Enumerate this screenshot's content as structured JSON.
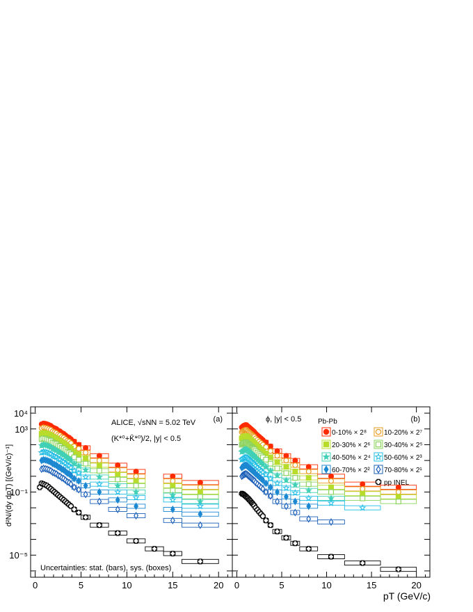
{
  "chart_data": {
    "type": "scatter",
    "y_title": "d²N/(dy dpT) [(GeV/c)⁻¹]",
    "x_title": "pT (GeV/c)",
    "x_ticks": [
      "0",
      "5",
      "10",
      "15",
      "20"
    ],
    "y_ticks": [
      "10⁴",
      "10³",
      "10⁻¹",
      "10⁻⁵"
    ],
    "xlim": [
      -0.5,
      21.5
    ],
    "y_log10_range": [
      -6.4,
      4.4
    ],
    "legend_placement": "top-right of panel (b)",
    "panels": [
      {
        "label": "(a)",
        "annotations": [
          "ALICE, √sNN = 5.02 TeV",
          "(K*⁰+K̄*⁰)/2, |y| < 0.5",
          "Uncertainties: stat. (bars), sys. (boxes)"
        ],
        "bins": [
          [
            0.4,
            0.6
          ],
          [
            0.6,
            0.8
          ],
          [
            0.8,
            1.0
          ],
          [
            1.0,
            1.2
          ],
          [
            1.2,
            1.4
          ],
          [
            1.4,
            1.6
          ],
          [
            1.6,
            1.8
          ],
          [
            1.8,
            2.0
          ],
          [
            2.0,
            2.2
          ],
          [
            2.2,
            2.4
          ],
          [
            2.4,
            2.6
          ],
          [
            2.6,
            2.8
          ],
          [
            2.8,
            3.0
          ],
          [
            3.0,
            3.2
          ],
          [
            3.2,
            3.4
          ],
          [
            3.4,
            3.6
          ],
          [
            3.6,
            3.8
          ],
          [
            3.8,
            4.0
          ],
          [
            4.0,
            4.5
          ],
          [
            4.5,
            5.0
          ],
          [
            5.0,
            6.0
          ],
          [
            6.0,
            8.0
          ],
          [
            8.0,
            10.0
          ],
          [
            10.0,
            12.0
          ],
          [
            12.0,
            14.0
          ],
          [
            14.0,
            16.0
          ],
          [
            16.0,
            20.0
          ]
        ],
        "series": [
          {
            "name": "0-10% × 2⁸",
            "log10_y": [
              null,
              3.3,
              3.35,
              3.33,
              3.3,
              3.25,
              3.2,
              3.1,
              3.05,
              3.0,
              2.9,
              2.85,
              2.75,
              2.7,
              2.6,
              2.5,
              2.45,
              2.35,
              2.2,
              2.0,
              1.8,
              1.3,
              0.7,
              0.3,
              null,
              0.0,
              -0.4
            ]
          },
          {
            "name": "10-20% × 2⁷",
            "log10_y": [
              null,
              3.05,
              3.1,
              3.08,
              3.05,
              3.0,
              2.95,
              2.85,
              2.8,
              2.75,
              2.65,
              2.6,
              2.5,
              2.45,
              2.35,
              2.25,
              2.2,
              2.1,
              1.9,
              1.75,
              1.5,
              1.0,
              0.4,
              0.0,
              null,
              -0.3,
              -0.7
            ]
          },
          {
            "name": "20-30% × 2⁶",
            "log10_y": [
              null,
              2.7,
              2.75,
              2.73,
              2.7,
              2.65,
              2.6,
              2.5,
              2.45,
              2.4,
              2.3,
              2.25,
              2.15,
              2.1,
              2.0,
              1.9,
              1.85,
              1.75,
              1.55,
              1.4,
              1.15,
              0.7,
              0.1,
              -0.3,
              null,
              -0.6,
              -1.0
            ]
          },
          {
            "name": "30-40% × 2⁵",
            "log10_y": [
              null,
              2.35,
              2.4,
              2.38,
              2.35,
              2.3,
              2.25,
              2.15,
              2.1,
              2.05,
              1.95,
              1.9,
              1.8,
              1.75,
              1.65,
              1.55,
              1.5,
              1.4,
              1.2,
              1.05,
              0.8,
              0.35,
              -0.2,
              -0.6,
              null,
              -0.9,
              -1.3
            ]
          },
          {
            "name": "40-50% × 2⁴",
            "log10_y": [
              null,
              1.95,
              2.0,
              1.98,
              1.95,
              1.9,
              1.85,
              1.75,
              1.7,
              1.65,
              1.55,
              1.5,
              1.4,
              1.35,
              1.25,
              1.15,
              1.1,
              1.0,
              0.8,
              0.65,
              0.4,
              -0.05,
              -0.6,
              -1.0,
              null,
              -1.2,
              -1.6
            ]
          },
          {
            "name": "50-60% × 2³",
            "log10_y": [
              null,
              1.5,
              1.55,
              1.53,
              1.5,
              1.45,
              1.4,
              1.3,
              1.25,
              1.2,
              1.1,
              1.05,
              0.95,
              0.9,
              0.8,
              0.7,
              0.65,
              0.55,
              0.35,
              0.2,
              -0.05,
              -0.5,
              -1.0,
              -1.35,
              null,
              -1.5,
              -1.9
            ]
          },
          {
            "name": "60-70% × 2²",
            "log10_y": [
              null,
              1.0,
              1.05,
              1.03,
              1.0,
              0.95,
              0.9,
              0.8,
              0.75,
              0.7,
              0.6,
              0.55,
              0.45,
              0.4,
              0.3,
              0.2,
              0.15,
              0.05,
              -0.15,
              -0.3,
              -0.6,
              -1.0,
              -1.5,
              -1.9,
              null,
              -2.1,
              -2.4
            ]
          },
          {
            "name": "70-80% × 2¹",
            "log10_y": [
              null,
              0.45,
              0.5,
              0.48,
              0.45,
              0.4,
              0.35,
              0.25,
              0.2,
              0.15,
              0.05,
              0.0,
              -0.1,
              -0.15,
              -0.25,
              -0.35,
              -0.4,
              -0.5,
              -0.7,
              -0.85,
              -1.15,
              -1.6,
              -2.1,
              -2.5,
              null,
              -2.8,
              -3.1
            ]
          },
          {
            "name": "pp INEL",
            "log10_y": [
              -0.7,
              -0.45,
              -0.5,
              -0.55,
              -0.6,
              -0.7,
              -0.8,
              -0.9,
              -1.0,
              -1.1,
              -1.2,
              -1.3,
              -1.4,
              -1.5,
              -1.6,
              -1.7,
              -1.8,
              -1.9,
              -2.1,
              -2.3,
              -2.6,
              -3.1,
              -3.6,
              -4.1,
              -4.6,
              -4.9,
              -5.4
            ]
          }
        ]
      },
      {
        "label": "(b)",
        "annotations": [
          "ϕ, |y| < 0.5",
          "Pb-Pb"
        ],
        "bins": [
          [
            0.5,
            0.6
          ],
          [
            0.6,
            0.7
          ],
          [
            0.7,
            0.8
          ],
          [
            0.8,
            0.9
          ],
          [
            0.9,
            1.0
          ],
          [
            1.0,
            1.1
          ],
          [
            1.1,
            1.2
          ],
          [
            1.2,
            1.3
          ],
          [
            1.3,
            1.4
          ],
          [
            1.4,
            1.5
          ],
          [
            1.5,
            1.6
          ],
          [
            1.6,
            1.7
          ],
          [
            1.7,
            1.8
          ],
          [
            1.8,
            1.9
          ],
          [
            1.9,
            2.0
          ],
          [
            2.0,
            2.2
          ],
          [
            2.2,
            2.4
          ],
          [
            2.4,
            2.6
          ],
          [
            2.6,
            2.8
          ],
          [
            2.8,
            3.0
          ],
          [
            3.0,
            3.5
          ],
          [
            3.5,
            4.0
          ],
          [
            4.0,
            5.0
          ],
          [
            5.0,
            6.0
          ],
          [
            6.0,
            7.0
          ],
          [
            7.0,
            9.0
          ],
          [
            9.0,
            12.0
          ],
          [
            12.0,
            16.0
          ],
          [
            16.0,
            20.0
          ]
        ],
        "series": [
          {
            "name": "0-10% × 2⁸",
            "log10_y": [
              3.1,
              3.15,
              3.2,
              3.22,
              3.25,
              3.25,
              3.2,
              3.15,
              3.1,
              3.05,
              3.0,
              2.95,
              2.9,
              2.85,
              2.8,
              2.7,
              2.6,
              2.5,
              2.4,
              2.3,
              2.15,
              1.9,
              1.6,
              1.3,
              1.0,
              0.6,
              0.0,
              -0.5,
              -0.7
            ]
          },
          {
            "name": "10-20% × 2⁷",
            "log10_y": [
              2.8,
              2.85,
              2.9,
              2.92,
              2.95,
              2.95,
              2.9,
              2.85,
              2.8,
              2.75,
              2.7,
              2.65,
              2.6,
              2.55,
              2.5,
              2.4,
              2.3,
              2.2,
              2.1,
              2.0,
              1.85,
              1.6,
              1.3,
              1.0,
              0.7,
              0.3,
              -0.3,
              -0.8,
              -1.0
            ]
          },
          {
            "name": "20-30% × 2⁶",
            "log10_y": [
              2.4,
              2.45,
              2.5,
              2.52,
              2.55,
              2.55,
              2.5,
              2.45,
              2.4,
              2.35,
              2.3,
              2.25,
              2.2,
              2.15,
              2.1,
              2.0,
              1.9,
              1.8,
              1.7,
              1.6,
              1.45,
              1.2,
              0.9,
              0.6,
              0.3,
              -0.1,
              -0.7,
              -1.1,
              -1.3
            ]
          },
          {
            "name": "30-40% × 2⁵",
            "log10_y": [
              2.0,
              2.05,
              2.1,
              2.12,
              2.15,
              2.15,
              2.1,
              2.05,
              2.0,
              1.95,
              1.9,
              1.85,
              1.8,
              1.75,
              1.7,
              1.6,
              1.5,
              1.4,
              1.3,
              1.2,
              1.05,
              0.8,
              0.5,
              0.2,
              -0.1,
              -0.5,
              -1.0,
              -1.4,
              -1.6
            ]
          },
          {
            "name": "40-50% × 2⁴",
            "log10_y": [
              1.55,
              1.6,
              1.65,
              1.67,
              1.7,
              1.7,
              1.65,
              1.6,
              1.55,
              1.5,
              1.45,
              1.4,
              1.35,
              1.3,
              1.25,
              1.15,
              1.05,
              0.95,
              0.85,
              0.75,
              0.6,
              0.35,
              0.05,
              -0.25,
              -0.55,
              -0.9,
              -1.4,
              null,
              null
            ]
          },
          {
            "name": "50-60% × 2³",
            "log10_y": [
              1.05,
              1.1,
              1.15,
              1.17,
              1.2,
              1.2,
              1.15,
              1.1,
              1.05,
              1.0,
              0.95,
              0.9,
              0.85,
              0.8,
              0.75,
              0.65,
              0.55,
              0.45,
              0.35,
              0.25,
              0.1,
              -0.15,
              -0.45,
              -0.75,
              -1.05,
              -1.4,
              -1.7,
              -2.0,
              null
            ]
          },
          {
            "name": "60-70% × 2²",
            "log10_y": [
              0.55,
              0.6,
              0.65,
              0.67,
              0.7,
              0.7,
              0.65,
              0.6,
              0.55,
              0.5,
              0.45,
              0.4,
              0.35,
              0.3,
              0.25,
              0.15,
              0.05,
              -0.05,
              -0.15,
              -0.25,
              -0.45,
              -0.7,
              -1.0,
              -1.3,
              -1.6,
              -1.9,
              null,
              null,
              null
            ]
          },
          {
            "name": "70-80% × 2¹",
            "log10_y": [
              0.0,
              0.05,
              0.1,
              0.12,
              0.15,
              0.15,
              0.1,
              0.05,
              0.0,
              -0.05,
              -0.1,
              -0.15,
              -0.2,
              -0.25,
              -0.3,
              -0.4,
              -0.5,
              -0.6,
              -0.7,
              -0.8,
              -1.0,
              -1.25,
              -1.6,
              -1.9,
              -2.3,
              -2.7,
              -2.9,
              null,
              null
            ]
          },
          {
            "name": "pp INEL",
            "log10_y": [
              -1.1,
              -1.12,
              -1.15,
              -1.2,
              -1.25,
              -1.3,
              -1.35,
              -1.4,
              -1.47,
              -1.53,
              -1.6,
              -1.67,
              -1.73,
              -1.8,
              -1.87,
              -2.0,
              -2.13,
              -2.27,
              -2.4,
              -2.53,
              -2.8,
              -3.1,
              -3.5,
              -3.9,
              -4.25,
              -4.6,
              -5.1,
              -5.5,
              -5.9
            ]
          }
        ]
      }
    ]
  },
  "styles": [
    {
      "color": "#ff2a00",
      "marker": "circle",
      "fill": true
    },
    {
      "color": "#e89b1c",
      "marker": "circle",
      "fill": false
    },
    {
      "color": "#b8dc2c",
      "marker": "square",
      "fill": true
    },
    {
      "color": "#8cd35e",
      "marker": "square",
      "fill": false
    },
    {
      "color": "#40d0b6",
      "marker": "star",
      "fill": true
    },
    {
      "color": "#21bde6",
      "marker": "star",
      "fill": false
    },
    {
      "color": "#1c88d2",
      "marker": "diamond",
      "fill": true
    },
    {
      "color": "#1b5fb8",
      "marker": "diamond",
      "fill": false
    },
    {
      "color": "#000000",
      "marker": "cross",
      "fill": false
    }
  ]
}
